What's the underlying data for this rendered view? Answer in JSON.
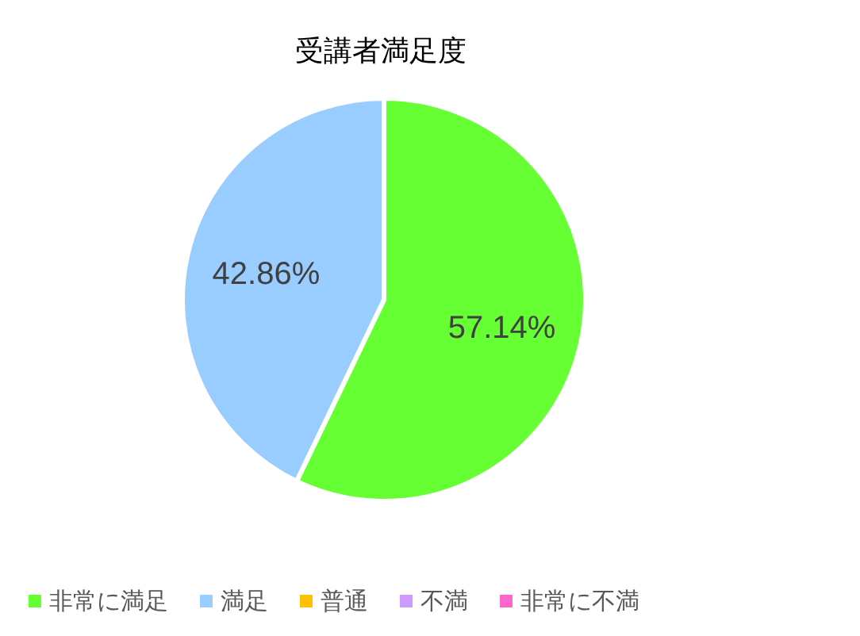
{
  "chart_data": {
    "type": "pie",
    "title": "受講者満足度",
    "categories": [
      "非常に満足",
      "満足",
      "普通",
      "不満",
      "非常に不満"
    ],
    "values": [
      57.14,
      42.86,
      0,
      0,
      0
    ],
    "colors": [
      "#66ff33",
      "#99ccff",
      "#ffc000",
      "#cc99ff",
      "#ff66cc"
    ],
    "value_labels": [
      "57.14%",
      "42.86%",
      null,
      null,
      null
    ],
    "legend": "bottom"
  }
}
